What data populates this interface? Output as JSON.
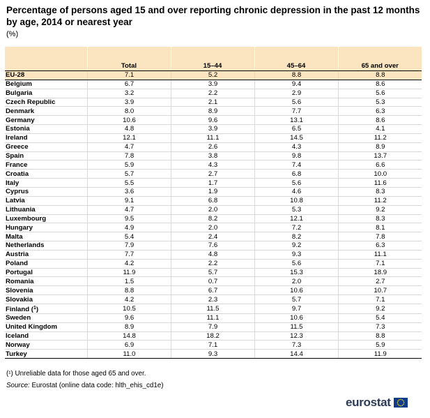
{
  "title": "Percentage of persons aged 15 and over reporting chronic depression in the past 12 months by age, 2014 or nearest year",
  "unit": "(%)",
  "columns": [
    "",
    "Total",
    "15–44",
    "45–64",
    "65 and over"
  ],
  "rows": [
    {
      "country": "EU-28",
      "sup": "",
      "values": [
        "7.1",
        "5.2",
        "8.8",
        "8.8"
      ]
    },
    {
      "country": "Belgium",
      "sup": "",
      "values": [
        "6.7",
        "3.9",
        "9.4",
        "8.6"
      ]
    },
    {
      "country": "Bulgaria",
      "sup": "",
      "values": [
        "3.2",
        "2.2",
        "2.9",
        "5.6"
      ]
    },
    {
      "country": "Czech Republic",
      "sup": "",
      "values": [
        "3.9",
        "2.1",
        "5.6",
        "5.3"
      ]
    },
    {
      "country": "Denmark",
      "sup": "",
      "values": [
        "8.0",
        "8.9",
        "7.7",
        "6.3"
      ]
    },
    {
      "country": "Germany",
      "sup": "",
      "values": [
        "10.6",
        "9.6",
        "13.1",
        "8.6"
      ]
    },
    {
      "country": "Estonia",
      "sup": "",
      "values": [
        "4.8",
        "3.9",
        "6.5",
        "4.1"
      ]
    },
    {
      "country": "Ireland",
      "sup": "",
      "values": [
        "12.1",
        "11.1",
        "14.5",
        "11.2"
      ]
    },
    {
      "country": "Greece",
      "sup": "",
      "values": [
        "4.7",
        "2.6",
        "4.3",
        "8.9"
      ]
    },
    {
      "country": "Spain",
      "sup": "",
      "values": [
        "7.8",
        "3.8",
        "9.8",
        "13.7"
      ]
    },
    {
      "country": "France",
      "sup": "",
      "values": [
        "5.9",
        "4.3",
        "7.4",
        "6.6"
      ]
    },
    {
      "country": "Croatia",
      "sup": "",
      "values": [
        "5.7",
        "2.7",
        "6.8",
        "10.0"
      ]
    },
    {
      "country": "Italy",
      "sup": "",
      "values": [
        "5.5",
        "1.7",
        "5.6",
        "11.6"
      ]
    },
    {
      "country": "Cyprus",
      "sup": "",
      "values": [
        "3.6",
        "1.9",
        "4.6",
        "8.3"
      ]
    },
    {
      "country": "Latvia",
      "sup": "",
      "values": [
        "9.1",
        "6.8",
        "10.8",
        "11.2"
      ]
    },
    {
      "country": "Lithuania",
      "sup": "",
      "values": [
        "4.7",
        "2.0",
        "5.3",
        "9.2"
      ]
    },
    {
      "country": "Luxembourg",
      "sup": "",
      "values": [
        "9.5",
        "8.2",
        "12.1",
        "8.3"
      ]
    },
    {
      "country": "Hungary",
      "sup": "",
      "values": [
        "4.9",
        "2.0",
        "7.2",
        "8.1"
      ]
    },
    {
      "country": "Malta",
      "sup": "",
      "values": [
        "5.4",
        "2.4",
        "8.2",
        "7.8"
      ]
    },
    {
      "country": "Netherlands",
      "sup": "",
      "values": [
        "7.9",
        "7.6",
        "9.2",
        "6.3"
      ]
    },
    {
      "country": "Austria",
      "sup": "",
      "values": [
        "7.7",
        "4.8",
        "9.3",
        "11.1"
      ]
    },
    {
      "country": "Poland",
      "sup": "",
      "values": [
        "4.2",
        "2.2",
        "5.6",
        "7.1"
      ]
    },
    {
      "country": "Portugal",
      "sup": "",
      "values": [
        "11.9",
        "5.7",
        "15.3",
        "18.9"
      ]
    },
    {
      "country": "Romania",
      "sup": "",
      "values": [
        "1.5",
        "0.7",
        "2.0",
        "2.7"
      ]
    },
    {
      "country": "Slovenia",
      "sup": "",
      "values": [
        "8.8",
        "6.7",
        "10.6",
        "10.7"
      ]
    },
    {
      "country": "Slovakia",
      "sup": "",
      "values": [
        "4.2",
        "2.3",
        "5.7",
        "7.1"
      ]
    },
    {
      "country": "Finland (",
      "sup": "1",
      "suffix": ")",
      "values": [
        "10.5",
        "11.5",
        "9.7",
        "9.2"
      ]
    },
    {
      "country": "Sweden",
      "sup": "",
      "values": [
        "9.6",
        "11.1",
        "10.6",
        "5.4"
      ]
    },
    {
      "country": "United Kingdom",
      "sup": "",
      "values": [
        "8.9",
        "7.9",
        "11.5",
        "7.3"
      ]
    },
    {
      "country": "Iceland",
      "sup": "",
      "values": [
        "14.8",
        "18.2",
        "12.3",
        "8.8"
      ]
    },
    {
      "country": "Norway",
      "sup": "",
      "values": [
        "6.9",
        "7.1",
        "7.3",
        "5.9"
      ]
    },
    {
      "country": "Turkey",
      "sup": "",
      "values": [
        "11.0",
        "9.3",
        "14.4",
        "11.9"
      ]
    }
  ],
  "footnote": "(¹) Unreliable data for those aged 65 and over.",
  "source_label": "Source:",
  "source_text": "Eurostat (online data code: hlth_ehis_cd1e)",
  "logo": {
    "text": "eurostat",
    "icon": "eu-flag-icon",
    "flag_color": "#0e3a8c",
    "star_color": "#ffdd00"
  },
  "colors": {
    "header_bg": "#fbe5c1"
  }
}
